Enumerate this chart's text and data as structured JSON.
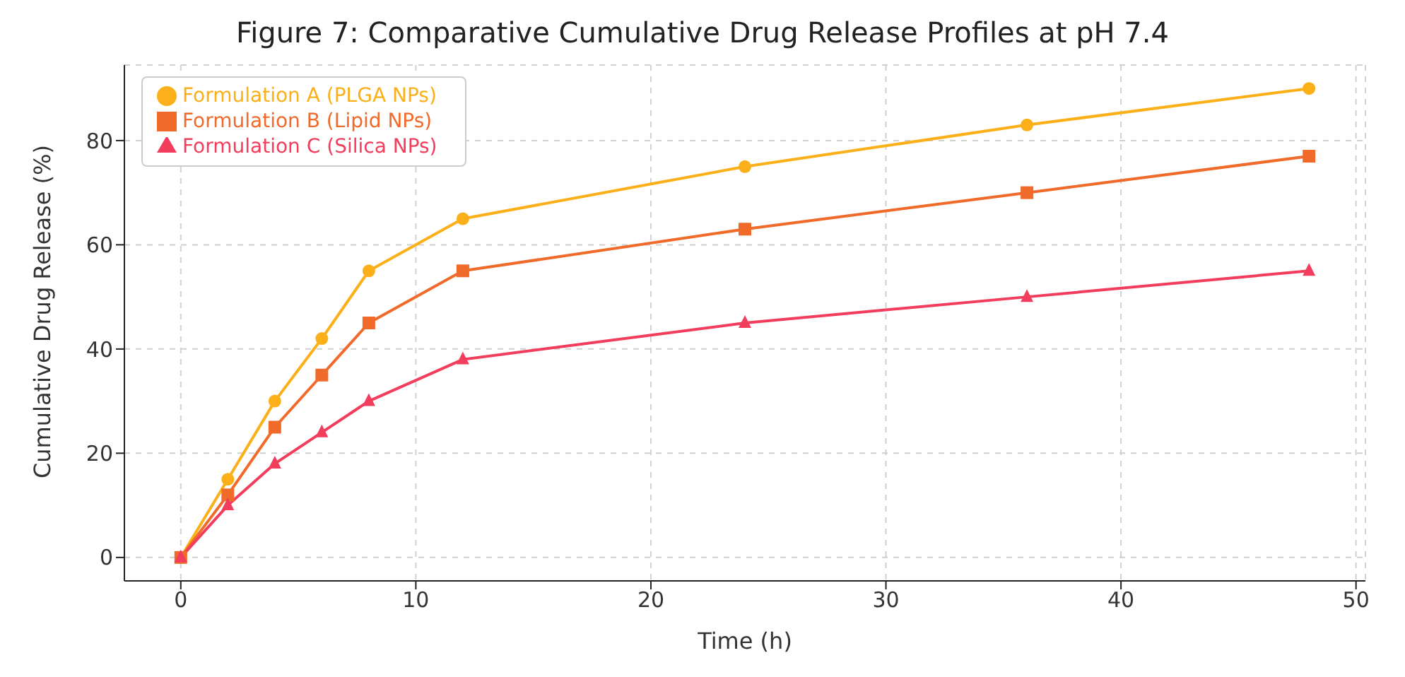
{
  "chart_data": {
    "type": "line",
    "title": "Figure 7: Comparative Cumulative Drug Release Profiles at pH 7.4",
    "xlabel": "Time (h)",
    "ylabel": "Cumulative Drug Release (%)",
    "x": [
      0,
      2,
      4,
      6,
      8,
      12,
      24,
      36,
      48
    ],
    "series": [
      {
        "name": "Formulation A (PLGA NPs)",
        "color": "#fbb01a",
        "marker": "circle",
        "values": [
          0,
          15,
          30,
          42,
          55,
          65,
          75,
          83,
          90
        ]
      },
      {
        "name": "Formulation B (Lipid NPs)",
        "color": "#f06a2a",
        "marker": "square",
        "values": [
          0,
          12,
          25,
          35,
          45,
          55,
          63,
          70,
          77
        ]
      },
      {
        "name": "Formulation C (Silica NPs)",
        "color": "#f23d5c",
        "marker": "triangle",
        "values": [
          0,
          10,
          18,
          24,
          30,
          38,
          45,
          50,
          55
        ]
      }
    ],
    "xlim": [
      -2.4,
      50.4
    ],
    "xticks": [
      0,
      10,
      20,
      30,
      40,
      50
    ],
    "ylim": [
      -4.5,
      94.5
    ],
    "yticks": [
      0,
      20,
      40,
      60,
      80
    ],
    "grid": true,
    "legend": "top left",
    "line_style": "solid"
  }
}
